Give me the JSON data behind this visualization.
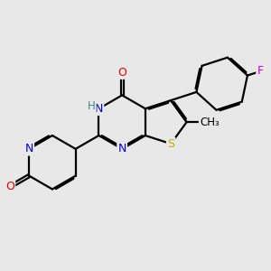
{
  "bg_color": "#e8e8e8",
  "bond_lw": 1.6,
  "dbo": 0.055,
  "atom_colors": {
    "N": "#0000dd",
    "O": "#dd0000",
    "S": "#ccaa00",
    "F": "#cc00cc",
    "H": "#448888",
    "C": "#000000"
  },
  "fs": 9,
  "fig_w": 3.0,
  "fig_h": 3.0,
  "dpi": 100,
  "xlim": [
    -1.0,
    9.0
  ],
  "ylim": [
    -1.0,
    9.0
  ]
}
